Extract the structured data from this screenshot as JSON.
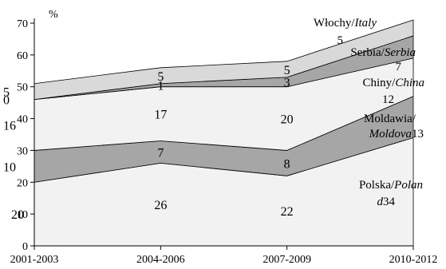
{
  "chart_data": {
    "type": "area",
    "stacked": true,
    "categories": [
      "2001-2003",
      "2004-2006",
      "2007-2009",
      "2010-2012"
    ],
    "ylabel": "%",
    "ylim": [
      0,
      70
    ],
    "yticks": [
      0,
      10,
      20,
      30,
      40,
      50,
      60,
      70
    ],
    "grid": false,
    "series": [
      {
        "name_pl": "Polska/",
        "name_en": "Polan",
        "name_en_suffix": "d",
        "values": [
          20,
          26,
          22,
          34
        ],
        "labels": [
          "20",
          "26",
          "22",
          "34"
        ],
        "color": "#f2f2f2"
      },
      {
        "name_pl": "Moldawia/",
        "name_en": "Moldova",
        "values": [
          10,
          7,
          8,
          13
        ],
        "labels": [
          "10",
          "7",
          "8",
          "13"
        ],
        "color": "#a6a6a6"
      },
      {
        "name_pl": "Chiny/",
        "name_en": "China",
        "values": [
          16,
          17,
          20,
          12
        ],
        "labels": [
          "16",
          "17",
          "20",
          "12"
        ],
        "color": "#f2f2f2"
      },
      {
        "name_pl": "Serbia/",
        "name_en": "Serbia",
        "values": [
          0,
          1,
          3,
          7
        ],
        "labels": [
          "0",
          "1",
          "3",
          "7"
        ],
        "color": "#a6a6a6"
      },
      {
        "name_pl": "Włochy/",
        "name_en": "Italy",
        "values": [
          5,
          5,
          5,
          5
        ],
        "labels": [
          "5",
          "5",
          "5",
          "5"
        ],
        "color": "#d9d9d9"
      }
    ]
  }
}
